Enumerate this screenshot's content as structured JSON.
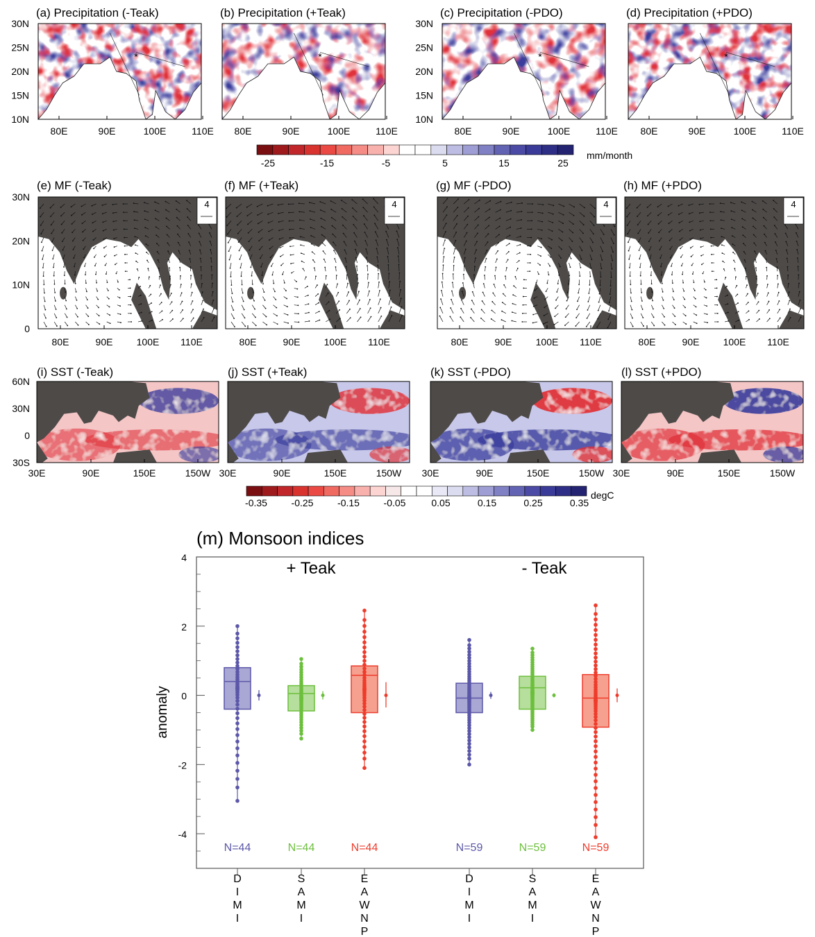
{
  "figure": {
    "precip_panels": [
      {
        "title": "(a) Precipitation (-Teak)",
        "sign": -1
      },
      {
        "title": "(b) Precipitation (+Teak)",
        "sign": 1
      },
      {
        "title": "(c) Precipitation (-PDO)",
        "sign": 1
      },
      {
        "title": "(d) Precipitation (+PDO)",
        "sign": -1
      }
    ],
    "precip_lat_ticks": [
      "30N",
      "25N",
      "20N",
      "15N",
      "10N"
    ],
    "precip_lon_ticks": [
      "80E",
      "90E",
      "100E",
      "110E"
    ],
    "precip_colorbar": {
      "ticks": [
        "-25",
        "-15",
        "-5",
        "5",
        "15",
        "25"
      ],
      "unit": "mm/month"
    },
    "mf_panels": [
      {
        "title": "(e) MF (-Teak)",
        "ref_label": "4"
      },
      {
        "title": "(f) MF (+Teak)",
        "ref_label": "4"
      },
      {
        "title": "(g) MF (-PDO)",
        "ref_label": "4"
      },
      {
        "title": "(h) MF (+PDO)",
        "ref_label": "4"
      }
    ],
    "mf_lat_ticks": [
      "30N",
      "20N",
      "10N",
      "0"
    ],
    "mf_lon_ticks": [
      "80E",
      "90E",
      "100E",
      "110E"
    ],
    "sst_panels": [
      {
        "title": "(i) SST (-Teak)",
        "sign": -1,
        "strength": 0.6
      },
      {
        "title": "(j) SST (+Teak)",
        "sign": 1,
        "strength": 0.7
      },
      {
        "title": "(k) SST (-PDO)",
        "sign": 1,
        "strength": 1.0
      },
      {
        "title": "(l) SST (+PDO)",
        "sign": -1,
        "strength": 0.9
      }
    ],
    "sst_lat_ticks": [
      "60N",
      "30N",
      "0",
      "30S"
    ],
    "sst_lon_ticks": [
      "30E",
      "90E",
      "150E",
      "150W"
    ],
    "sst_colorbar": {
      "ticks": [
        "-0.35",
        "-0.25",
        "-0.15",
        "-0.05",
        "0.05",
        "0.15",
        "0.25",
        "0.35"
      ],
      "unit": "degC"
    },
    "colors": {
      "land": "#4d4a48",
      "dimi": "#5b57a8",
      "sami": "#6cbf3c",
      "eawnp": "#ee3b2b"
    }
  },
  "chart_data": {
    "type": "box",
    "title": "(m) Monsoon indices",
    "ylabel": "anomaly",
    "ylim": [
      -5,
      4
    ],
    "yticks": [
      "4",
      "2",
      "0",
      "-2",
      "-4"
    ],
    "groups": [
      {
        "label": "+ Teak",
        "boxes": [
          {
            "index": "DIMI",
            "xlabel": [
              "D",
              "I",
              "M",
              "I"
            ],
            "q1": -0.4,
            "median": 0.4,
            "q3": 0.8,
            "min": -3.05,
            "max": 2.0,
            "n_label": "N=44",
            "n": 44,
            "ci": [
              -0.15,
              0.15
            ]
          },
          {
            "index": "SAMI",
            "xlabel": [
              "S",
              "A",
              "M",
              "I"
            ],
            "q1": -0.45,
            "median": 0.05,
            "q3": 0.28,
            "min": -1.25,
            "max": 1.05,
            "n_label": "N=44",
            "n": 44,
            "ci": [
              -0.12,
              0.12
            ]
          },
          {
            "index": "EAWNP",
            "xlabel": [
              "E",
              "A",
              "W",
              "N",
              "P"
            ],
            "q1": -0.5,
            "median": 0.58,
            "q3": 0.85,
            "min": -2.1,
            "max": 2.45,
            "n_label": "N=44",
            "n": 44,
            "ci": [
              -0.35,
              0.38
            ]
          }
        ]
      },
      {
        "label": "- Teak",
        "boxes": [
          {
            "index": "DIMI",
            "xlabel": [
              "D",
              "I",
              "M",
              "I"
            ],
            "q1": -0.5,
            "median": -0.08,
            "q3": 0.35,
            "min": -2.0,
            "max": 1.6,
            "n_label": "N=59",
            "n": 59,
            "ci": [
              -0.1,
              0.1
            ]
          },
          {
            "index": "SAMI",
            "xlabel": [
              "S",
              "A",
              "M",
              "I"
            ],
            "q1": -0.4,
            "median": 0.22,
            "q3": 0.55,
            "min": -1.0,
            "max": 1.35,
            "n_label": "N=59",
            "n": 59,
            "ci": [
              -0.06,
              0.06
            ]
          },
          {
            "index": "EAWNP",
            "xlabel": [
              "E",
              "A",
              "W",
              "N",
              "P"
            ],
            "q1": -0.92,
            "median": -0.08,
            "q3": 0.6,
            "min": -4.1,
            "max": 2.6,
            "n_label": "N=59",
            "n": 59,
            "ci": [
              -0.2,
              0.2
            ]
          }
        ]
      }
    ]
  }
}
